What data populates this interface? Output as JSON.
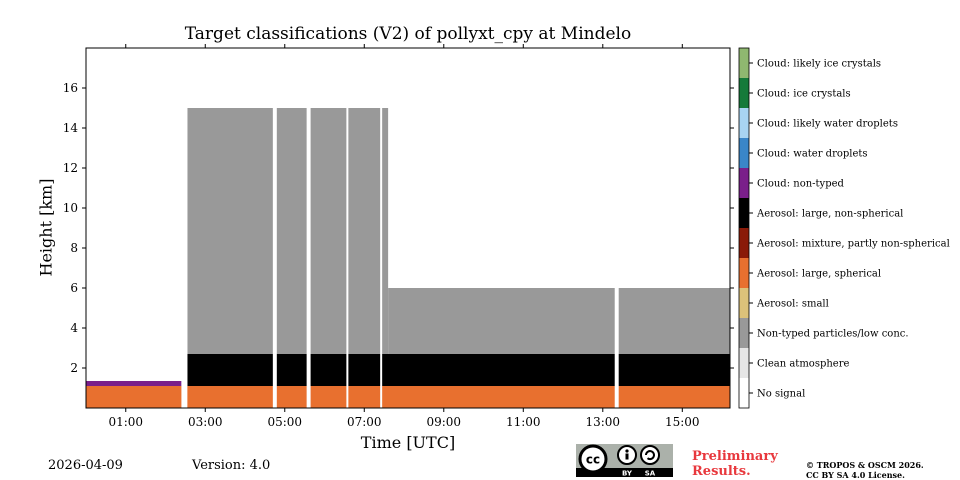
{
  "chart_data": {
    "type": "heatmap",
    "title": "Target classifications (V2) of pollyxt_cpy at Mindelo",
    "xlabel": "Time [UTC]",
    "ylabel": "Height [km]",
    "xlim_hours": [
      0,
      16.2
    ],
    "ylim_km": [
      0,
      18
    ],
    "x_ticks": [
      "01:00",
      "03:00",
      "05:00",
      "07:00",
      "09:00",
      "11:00",
      "13:00",
      "15:00"
    ],
    "x_tick_hours": [
      1,
      3,
      5,
      7,
      9,
      11,
      13,
      15
    ],
    "y_ticks": [
      "2",
      "4",
      "6",
      "8",
      "10",
      "12",
      "14",
      "16"
    ],
    "y_tick_values": [
      2,
      4,
      6,
      8,
      10,
      12,
      14,
      16
    ],
    "classes": [
      {
        "label": "Cloud: likely ice crystals",
        "color": "#8fb870"
      },
      {
        "label": "Cloud: ice crystals",
        "color": "#157a3a"
      },
      {
        "label": "Cloud: likely water droplets",
        "color": "#a8d4f2"
      },
      {
        "label": "Cloud: water droplets",
        "color": "#3a86c8"
      },
      {
        "label": "Cloud: non-typed",
        "color": "#7a1f8a"
      },
      {
        "label": "Aerosol: large, non-spherical",
        "color": "#000000"
      },
      {
        "label": "Aerosol: mixture, partly non-spherical",
        "color": "#8a1a08"
      },
      {
        "label": "Aerosol: large, spherical",
        "color": "#e8702f"
      },
      {
        "label": "Aerosol: small",
        "color": "#dcc27a"
      },
      {
        "label": "Non-typed particles/low conc.",
        "color": "#999999"
      },
      {
        "label": "Clean atmosphere",
        "color": "#e6e6e6"
      },
      {
        "label": "No signal",
        "color": "#ffffff"
      }
    ],
    "regions": [
      {
        "class": "Aerosol: large, spherical",
        "start_h": 0.0,
        "end_h": 16.2,
        "bottom_km": 0.0,
        "top_km": 1.1
      },
      {
        "class": "Cloud: non-typed",
        "start_h": 0.0,
        "end_h": 2.4,
        "bottom_km": 1.1,
        "top_km": 1.35
      },
      {
        "class": "Aerosol: large, non-spherical",
        "start_h": 2.55,
        "end_h": 16.2,
        "bottom_km": 1.1,
        "top_km": 2.7
      },
      {
        "class": "Non-typed particles/low conc.",
        "start_h": 2.55,
        "end_h": 7.6,
        "bottom_km": 2.7,
        "top_km": 15.0
      },
      {
        "class": "Non-typed particles/low conc.",
        "start_h": 7.6,
        "end_h": 16.2,
        "bottom_km": 2.7,
        "top_km": 6.0
      }
    ],
    "no_signal_gaps_h": [
      [
        2.4,
        2.55
      ],
      [
        4.7,
        4.8
      ],
      [
        5.55,
        5.65
      ],
      [
        6.55,
        6.6
      ],
      [
        7.4,
        7.45
      ],
      [
        13.3,
        13.4
      ]
    ]
  },
  "footer": {
    "date": "2026-04-09",
    "version": "Version: 4.0",
    "preliminary": "Preliminary Results.",
    "copyright_line1": "© TROPOS & OSCM 2026.",
    "copyright_line2": "CC BY SA 4.0 License.",
    "cc_text": "cc",
    "by_text": "BY",
    "sa_text": "SA"
  }
}
